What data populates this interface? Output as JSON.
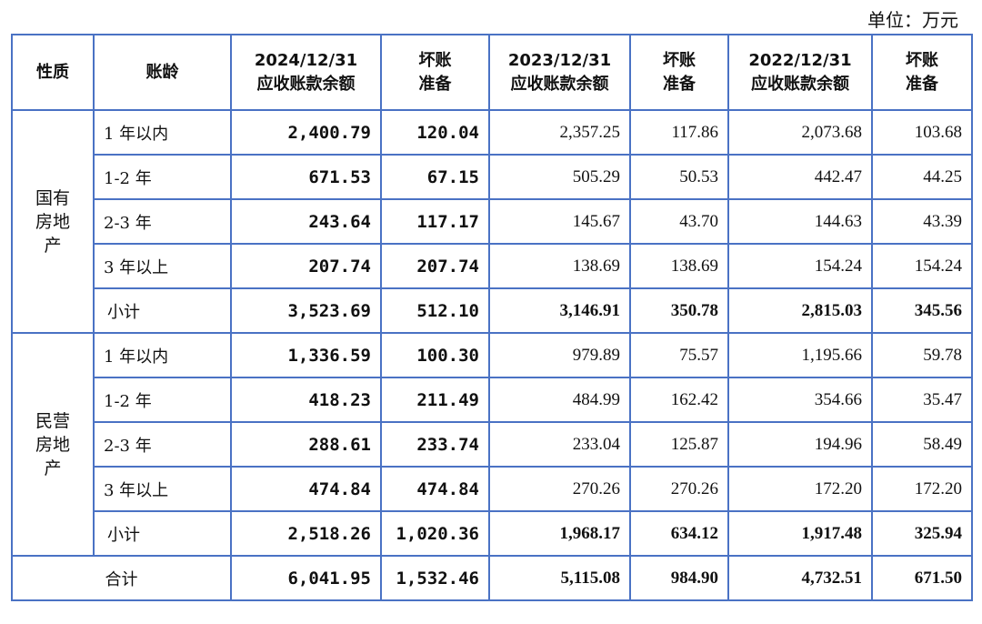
{
  "unit": "单位：万元",
  "headers": [
    "性质",
    "账龄",
    "2024/12/31\n应收账款余额",
    "坏账\n准备",
    "2023/12/31\n应收账款余额",
    "坏账\n准备",
    "2022/12/31\n应收账款余额",
    "坏账\n准备"
  ],
  "groups": [
    {
      "name": "国有\n房地\n产",
      "rows": [
        [
          "1 年以内",
          "2,400.79",
          "120.04",
          "2,357.25",
          "117.86",
          "2,073.68",
          "103.68"
        ],
        [
          "1-2 年",
          "671.53",
          "67.15",
          "505.29",
          "50.53",
          "442.47",
          "44.25"
        ],
        [
          "2-3 年",
          "243.64",
          "117.17",
          "145.67",
          "43.70",
          "144.63",
          "43.39"
        ],
        [
          "3 年以上",
          "207.74",
          "207.74",
          "138.69",
          "138.69",
          "154.24",
          "154.24"
        ],
        [
          "小计",
          "3,523.69",
          "512.10",
          "3,146.91",
          "350.78",
          "2,815.03",
          "345.56"
        ]
      ]
    },
    {
      "name": "民营\n房地\n产",
      "rows": [
        [
          "1 年以内",
          "1,336.59",
          "100.30",
          "979.89",
          "75.57",
          "1,195.66",
          "59.78"
        ],
        [
          "1-2 年",
          "418.23",
          "211.49",
          "484.99",
          "162.42",
          "354.66",
          "35.47"
        ],
        [
          "2-3 年",
          "288.61",
          "233.74",
          "233.04",
          "125.87",
          "194.96",
          "58.49"
        ],
        [
          "3 年以上",
          "474.84",
          "474.84",
          "270.26",
          "270.26",
          "172.20",
          "172.20"
        ],
        [
          "小计",
          "2,518.26",
          "1,020.36",
          "1,968.17",
          "634.12",
          "1,917.48",
          "325.94"
        ]
      ]
    }
  ],
  "total": [
    "合计",
    "6,041.95",
    "1,532.46",
    "5,115.08",
    "984.90",
    "4,732.51",
    "671.50"
  ],
  "colors": {
    "border": "#4a72c4"
  }
}
